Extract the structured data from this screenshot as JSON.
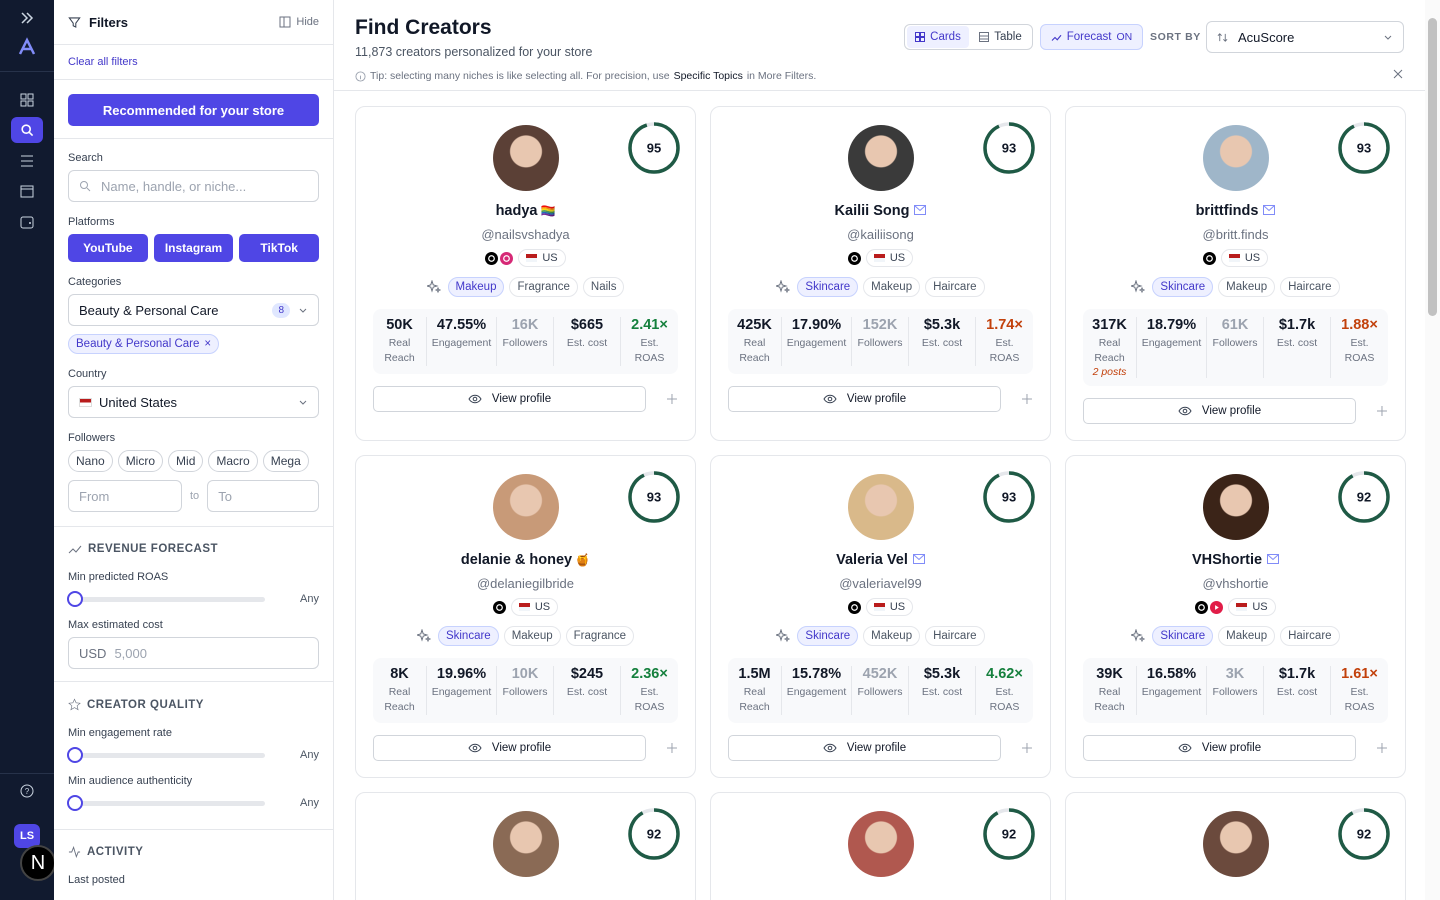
{
  "sidebar": {
    "user_initials": "LS",
    "badge": "N"
  },
  "filters": {
    "title": "Filters",
    "hide": "Hide",
    "clear": "Clear all filters",
    "recommended": "Recommended for your store",
    "search_label": "Search",
    "search_placeholder": "Name, handle, or niche...",
    "platforms_label": "Platforms",
    "platforms": [
      "YouTube",
      "Instagram",
      "TikTok"
    ],
    "categories_label": "Categories",
    "category_select": "Beauty & Personal Care",
    "category_count": "8",
    "category_chip": "Beauty & Personal Care",
    "country_label": "Country",
    "country": "United States",
    "followers_label": "Followers",
    "follower_sizes": [
      "Nano",
      "Micro",
      "Mid",
      "Macro",
      "Mega"
    ],
    "from": "From",
    "to_sep": "to",
    "to": "To",
    "revenue_title": "REVENUE FORECAST",
    "min_roas": "Min predicted ROAS",
    "min_roas_value": "Any",
    "max_cost": "Max estimated cost",
    "currency": "USD",
    "max_cost_placeholder": "5,000",
    "quality_title": "CREATOR QUALITY",
    "min_engagement": "Min engagement rate",
    "min_engagement_value": "Any",
    "min_authenticity": "Min audience authenticity",
    "min_authenticity_value": "Any",
    "activity_title": "ACTIVITY",
    "last_posted": "Last posted"
  },
  "header": {
    "title": "Find Creators",
    "subtitle": "11,873 creators personalized for your store",
    "view_cards": "Cards",
    "view_table": "Table",
    "forecast": "Forecast",
    "forecast_state": "ON",
    "sort_label": "SORT BY",
    "sort_value": "AcuScore",
    "tip_before": "Tip: selecting many niches is like selecting all. For precision, use",
    "tip_strong": "Specific Topics",
    "tip_after": "in More Filters."
  },
  "stat_labels": [
    "Real Reach",
    "Engagement",
    "Followers",
    "Est. cost",
    "Est. ROAS"
  ],
  "view_profile": "View profile",
  "cards": [
    {
      "score": 95,
      "name": "hadya",
      "badge": "🏳️‍🌈",
      "handle": "@nailsvshadya",
      "platforms": [
        "tiktok",
        "instagram"
      ],
      "country": "US",
      "tags": [
        "Makeup",
        "Fragrance",
        "Nails"
      ],
      "stats": [
        "50K",
        "47.55%",
        "16K",
        "$665",
        "2.41×"
      ],
      "roas_color": "#15803d"
    },
    {
      "score": 93,
      "name": "Kailii Song",
      "has_email": true,
      "handle": "@kailiisong",
      "platforms": [
        "tiktok"
      ],
      "country": "US",
      "tags": [
        "Skincare",
        "Makeup",
        "Haircare"
      ],
      "stats": [
        "425K",
        "17.90%",
        "152K",
        "$5.3k",
        "1.74×"
      ],
      "roas_color": "#c2410c"
    },
    {
      "score": 93,
      "name": "brittfinds",
      "has_email": true,
      "handle": "@britt.finds",
      "platforms": [
        "tiktok"
      ],
      "country": "US",
      "tags": [
        "Skincare",
        "Makeup",
        "Haircare"
      ],
      "stats": [
        "317K",
        "18.79%",
        "61K",
        "$1.7k",
        "1.88×"
      ],
      "note": "2 posts",
      "roas_color": "#c2410c"
    },
    {
      "score": 93,
      "name": "delanie & honey",
      "badge": "🍯",
      "handle": "@delaniegilbride",
      "platforms": [
        "tiktok"
      ],
      "country": "US",
      "tags": [
        "Skincare",
        "Makeup",
        "Fragrance"
      ],
      "stats": [
        "8K",
        "19.96%",
        "10K",
        "$245",
        "2.36×"
      ],
      "roas_color": "#15803d"
    },
    {
      "score": 93,
      "name": "Valeria Vel",
      "has_email": true,
      "handle": "@valeriavel99",
      "platforms": [
        "tiktok"
      ],
      "country": "US",
      "tags": [
        "Skincare",
        "Makeup",
        "Haircare"
      ],
      "stats": [
        "1.5M",
        "15.78%",
        "452K",
        "$5.3k",
        "4.62×"
      ],
      "roas_color": "#15803d"
    },
    {
      "score": 92,
      "name": "VHShortie",
      "has_email": true,
      "handle": "@vhshortie",
      "platforms": [
        "tiktok",
        "youtube"
      ],
      "country": "US",
      "tags": [
        "Skincare",
        "Makeup",
        "Haircare"
      ],
      "stats": [
        "39K",
        "16.58%",
        "3K",
        "$1.7k",
        "1.61×"
      ],
      "roas_color": "#c2410c"
    },
    {
      "score": 92
    },
    {
      "score": 92
    },
    {
      "score": 92
    }
  ]
}
